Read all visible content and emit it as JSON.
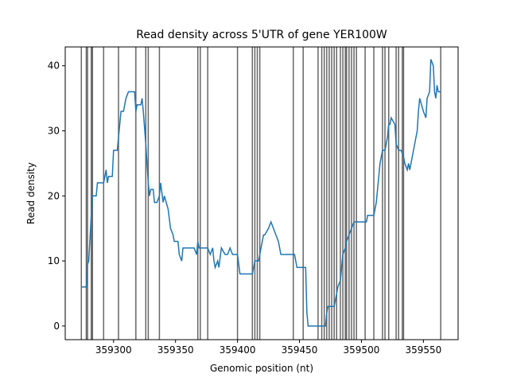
{
  "chart_data": {
    "type": "line",
    "title": "Read density across 5'UTR of gene YER100W",
    "xlabel": "Genomic position (nt)",
    "ylabel": "Read density",
    "x": [
      359274,
      359278,
      359279,
      359280,
      359282,
      359283,
      359286,
      359287,
      359292,
      359294,
      359295,
      359296,
      359299,
      359300,
      359303,
      359304,
      359306,
      359308,
      359310,
      359312,
      359317,
      359318,
      359319,
      359322,
      359323,
      359324,
      359326,
      359328,
      359329,
      359330,
      359332,
      359333,
      359335,
      359337,
      359338,
      359340,
      359341,
      359344,
      359346,
      359348,
      359349,
      359352,
      359353,
      359355,
      359356,
      359365,
      359367,
      359368,
      359369,
      359376,
      359378,
      359380,
      359381,
      359382,
      359384,
      359385,
      359387,
      359390,
      359392,
      359394,
      359396,
      359400,
      359402,
      359412,
      359414,
      359417,
      359419,
      359421,
      359422,
      359425,
      359427,
      359429,
      359431,
      359433,
      359435,
      359446,
      359448,
      359455,
      359456,
      359457,
      359471,
      359472,
      359473,
      359478,
      359481,
      359483,
      359485,
      359487,
      359488,
      359490,
      359492,
      359494,
      359504,
      359505,
      359510,
      359512,
      359515,
      359517,
      359519,
      359521,
      359522,
      359523,
      359524,
      359527,
      359528,
      359530,
      359532,
      359534,
      359535,
      359537,
      359538,
      359539,
      359541,
      359543,
      359545,
      359546,
      359547,
      359550,
      359552,
      359553,
      359555,
      359556,
      359558,
      359559,
      359560,
      359561,
      359562,
      359564
    ],
    "series": [
      {
        "color": "#1f77b4",
        "values": [
          6,
          6,
          9.5,
          10,
          17,
          20,
          20,
          22,
          22,
          24,
          22,
          23,
          23,
          27,
          27,
          29,
          33,
          33,
          35,
          36,
          36,
          33,
          34,
          34,
          35,
          33,
          28,
          22,
          20,
          21,
          21,
          19,
          19,
          20,
          22,
          19,
          20,
          18,
          15,
          14,
          13,
          13,
          11,
          10,
          12,
          12,
          11,
          13,
          12,
          12,
          11,
          12,
          10,
          9,
          10,
          9,
          12,
          11,
          11,
          12,
          11,
          11,
          8,
          8,
          10,
          10,
          12,
          14,
          14,
          15,
          16,
          15,
          14,
          13,
          11,
          11,
          9,
          9,
          2,
          0,
          0,
          2,
          3,
          3,
          6,
          7,
          11,
          12,
          13,
          14,
          15,
          16,
          16,
          17,
          17,
          19,
          25,
          27,
          27,
          29,
          31,
          31,
          32,
          31,
          28,
          27,
          27,
          26,
          25,
          24,
          25,
          24,
          26,
          28,
          30,
          33,
          35,
          33,
          32,
          35,
          36,
          41,
          40,
          36,
          35,
          37,
          36,
          36
        ]
      }
    ],
    "vlines": [
      359274,
      359278,
      359279,
      359282,
      359283,
      359292,
      359304,
      359318,
      359326,
      359328,
      359337,
      359368,
      359370,
      359376,
      359400,
      359412,
      359414,
      359416,
      359418,
      359445,
      359453,
      359465,
      359468,
      359470,
      359472,
      359474,
      359476,
      359478,
      359480,
      359483,
      359485,
      359487,
      359488,
      359490,
      359492,
      359494,
      359496,
      359503,
      359510,
      359517,
      359519,
      359522,
      359528,
      359530,
      359533,
      359534,
      359564
    ],
    "vline_color": "#666666",
    "xlim": [
      359261,
      359578
    ],
    "ylim": [
      -2.1,
      42.9
    ],
    "xticks": [
      359300,
      359350,
      359400,
      359450,
      359500,
      359550
    ],
    "yticks": [
      0,
      10,
      20,
      30,
      40
    ]
  }
}
